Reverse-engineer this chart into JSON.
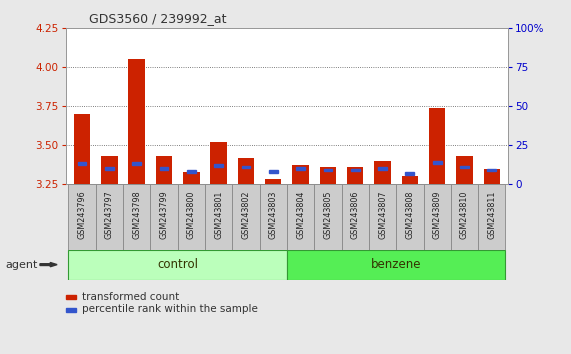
{
  "title": "GDS3560 / 239992_at",
  "samples": [
    "GSM243796",
    "GSM243797",
    "GSM243798",
    "GSM243799",
    "GSM243800",
    "GSM243801",
    "GSM243802",
    "GSM243803",
    "GSM243804",
    "GSM243805",
    "GSM243806",
    "GSM243807",
    "GSM243808",
    "GSM243809",
    "GSM243810",
    "GSM243811"
  ],
  "transformed_count": [
    3.7,
    3.43,
    4.05,
    3.43,
    3.33,
    3.52,
    3.42,
    3.28,
    3.37,
    3.36,
    3.36,
    3.4,
    3.3,
    3.74,
    3.43,
    3.35
  ],
  "percentile_rank": [
    13,
    10,
    13,
    10,
    8,
    12,
    11,
    8,
    10,
    9,
    9,
    10,
    7,
    14,
    11,
    9
  ],
  "ylim": [
    3.25,
    4.25
  ],
  "yticks": [
    3.25,
    3.5,
    3.75,
    4.0,
    4.25
  ],
  "right_ylim": [
    0,
    100
  ],
  "right_yticks": [
    0,
    25,
    50,
    75,
    100
  ],
  "bar_color": "#cc2200",
  "blue_color": "#3355cc",
  "bar_bottom": 3.25,
  "control_color": "#bbffbb",
  "benzene_color": "#55ee55",
  "group_edge_color": "#339933",
  "agent_label": "agent",
  "legend_items": [
    {
      "label": "transformed count",
      "color": "#cc2200"
    },
    {
      "label": "percentile rank within the sample",
      "color": "#3355cc"
    }
  ],
  "bg_color": "#e8e8e8",
  "plot_bg": "#ffffff",
  "left_tick_color": "#cc2200",
  "right_tick_color": "#0000cc",
  "grid_color": "#555555",
  "sample_cell_color": "#cccccc",
  "sample_cell_edge": "#888888"
}
